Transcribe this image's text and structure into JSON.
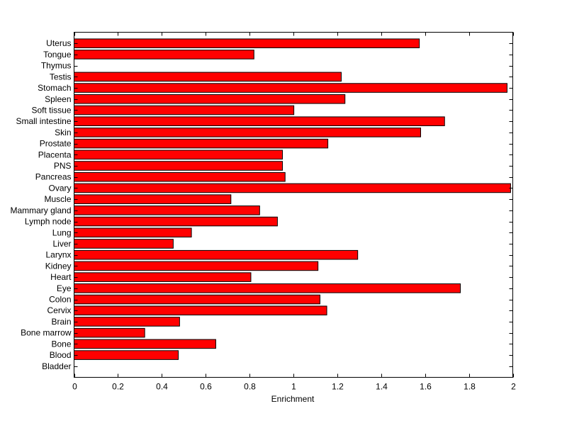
{
  "chart_data": {
    "type": "bar",
    "orientation": "horizontal",
    "title": "",
    "xlabel": "Enrichment",
    "ylabel": "",
    "xlim": [
      0,
      2
    ],
    "xticks": [
      "0",
      "0.2",
      "0.4",
      "0.6",
      "0.8",
      "1",
      "1.2",
      "1.4",
      "1.6",
      "1.8",
      "2"
    ],
    "grid": false,
    "bar_color": "#ff0000",
    "categories": [
      "Bladder",
      "Blood",
      "Bone",
      "Bone marrow",
      "Brain",
      "Cervix",
      "Colon",
      "Eye",
      "Heart",
      "Kidney",
      "Larynx",
      "Liver",
      "Lung",
      "Lymph node",
      "Mammary gland",
      "Muscle",
      "Ovary",
      "Pancreas",
      "PNS",
      "Placenta",
      "Prostate",
      "Skin",
      "Small intestine",
      "Soft tissue",
      "Spleen",
      "Stomach",
      "Testis",
      "Thymus",
      "Tongue",
      "Uterus"
    ],
    "values": [
      0,
      0.475,
      0.646,
      0.322,
      0.481,
      1.152,
      1.121,
      1.761,
      0.806,
      1.112,
      1.293,
      0.452,
      0.535,
      0.927,
      0.846,
      0.715,
      1.99,
      0.962,
      0.95,
      0.95,
      1.157,
      1.58,
      1.689,
      1.002,
      1.235,
      1.974,
      1.218,
      0,
      0.82,
      1.574
    ]
  }
}
